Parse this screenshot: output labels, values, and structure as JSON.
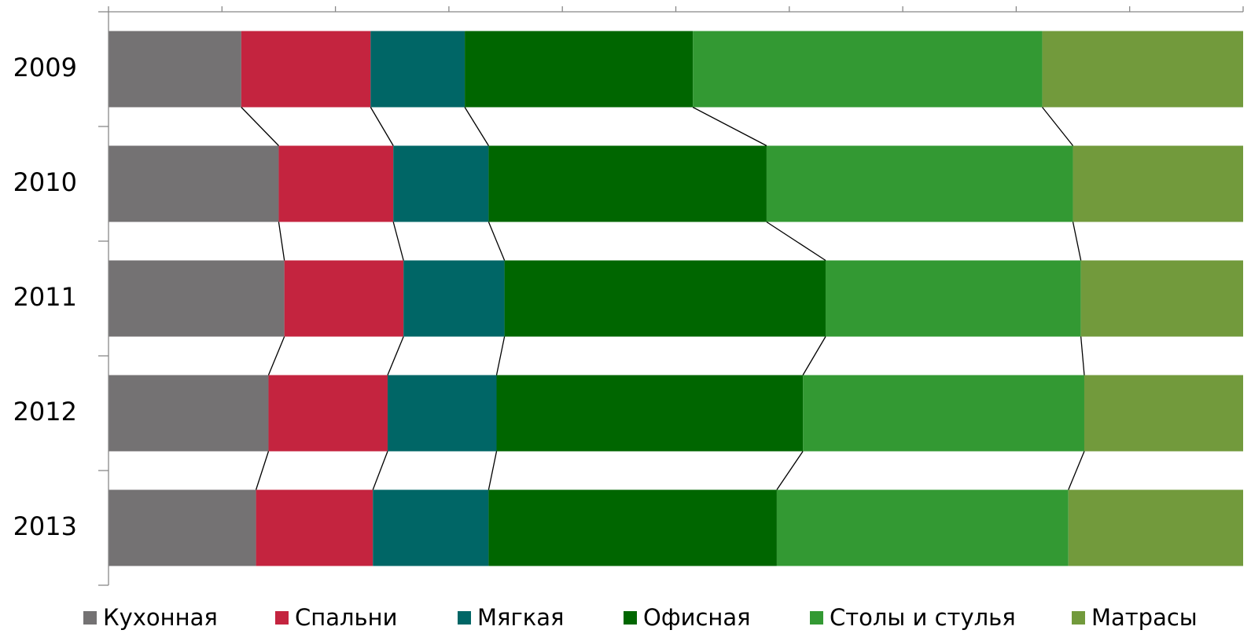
{
  "chart_data": {
    "type": "stacked_barh",
    "categories": [
      "2009",
      "2010",
      "2011",
      "2012",
      "2013"
    ],
    "series": [
      {
        "name": "Кухонная",
        "color": "#747273",
        "values": [
          11.7,
          15.0,
          15.5,
          14.1,
          13.0
        ]
      },
      {
        "name": "Спальни",
        "color": "#c4243f",
        "values": [
          11.4,
          10.1,
          10.5,
          10.5,
          10.3
        ]
      },
      {
        "name": "Мягкая",
        "color": "#006666",
        "values": [
          8.3,
          8.4,
          8.9,
          9.6,
          10.2
        ]
      },
      {
        "name": "Офисная",
        "color": "#006600",
        "values": [
          20.1,
          24.5,
          28.3,
          27.0,
          25.4
        ]
      },
      {
        "name": "Столы и стулья",
        "color": "#339933",
        "values": [
          30.8,
          27.0,
          22.5,
          24.8,
          25.7
        ]
      },
      {
        "name": "Матрасы",
        "color": "#729a3c",
        "values": [
          17.7,
          15.0,
          14.3,
          14.0,
          15.4
        ]
      }
    ],
    "xlim": [
      0,
      100
    ],
    "xticks": [
      0,
      10,
      20,
      30,
      40,
      50,
      60,
      70,
      80,
      90,
      100
    ],
    "series_lines": true,
    "legend": "bottom"
  }
}
